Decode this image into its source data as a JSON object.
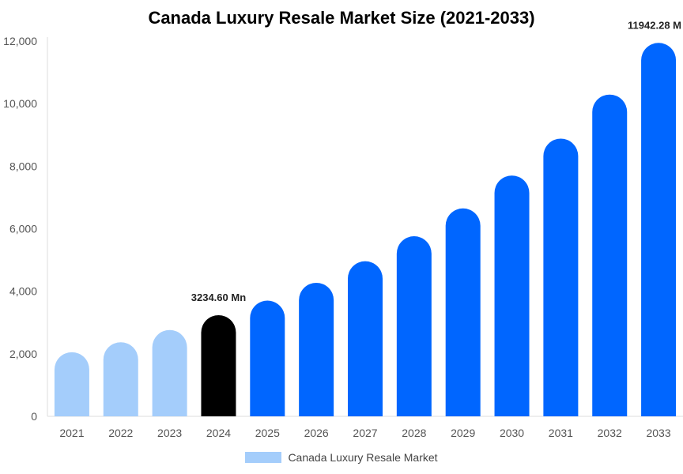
{
  "chart_data": {
    "type": "bar",
    "title": "Canada Luxury Resale Market Size (2021-2033)",
    "xlabel": "",
    "ylabel": "",
    "categories": [
      "2021",
      "2022",
      "2023",
      "2024",
      "2025",
      "2026",
      "2027",
      "2028",
      "2029",
      "2030",
      "2031",
      "2032",
      "2033"
    ],
    "series": [
      {
        "name": "Canada Luxury Resale Market",
        "values": [
          2050,
          2370,
          2760,
          3234.6,
          3700,
          4270,
          4960,
          5760,
          6650,
          7700,
          8880,
          10290,
          11942.28
        ]
      }
    ],
    "bar_colors": [
      "#a4cdfb",
      "#a4cdfb",
      "#a4cdfb",
      "#000000",
      "#0066ff",
      "#0066ff",
      "#0066ff",
      "#0066ff",
      "#0066ff",
      "#0066ff",
      "#0066ff",
      "#0066ff",
      "#0066ff"
    ],
    "legend_color": "#a4cdfb",
    "data_labels": [
      {
        "index": 3,
        "text": "3234.60 Mn"
      },
      {
        "index": 12,
        "text": "11942.28 M"
      }
    ],
    "yticks": [
      0,
      2000,
      4000,
      6000,
      8000,
      10000,
      12000
    ],
    "ytick_labels": [
      "0",
      "2,000",
      "4,000",
      "6,000",
      "8,000",
      "10,000",
      "12,000"
    ],
    "ylim": [
      0,
      12000
    ],
    "grid": false,
    "legend_position": "bottom"
  }
}
